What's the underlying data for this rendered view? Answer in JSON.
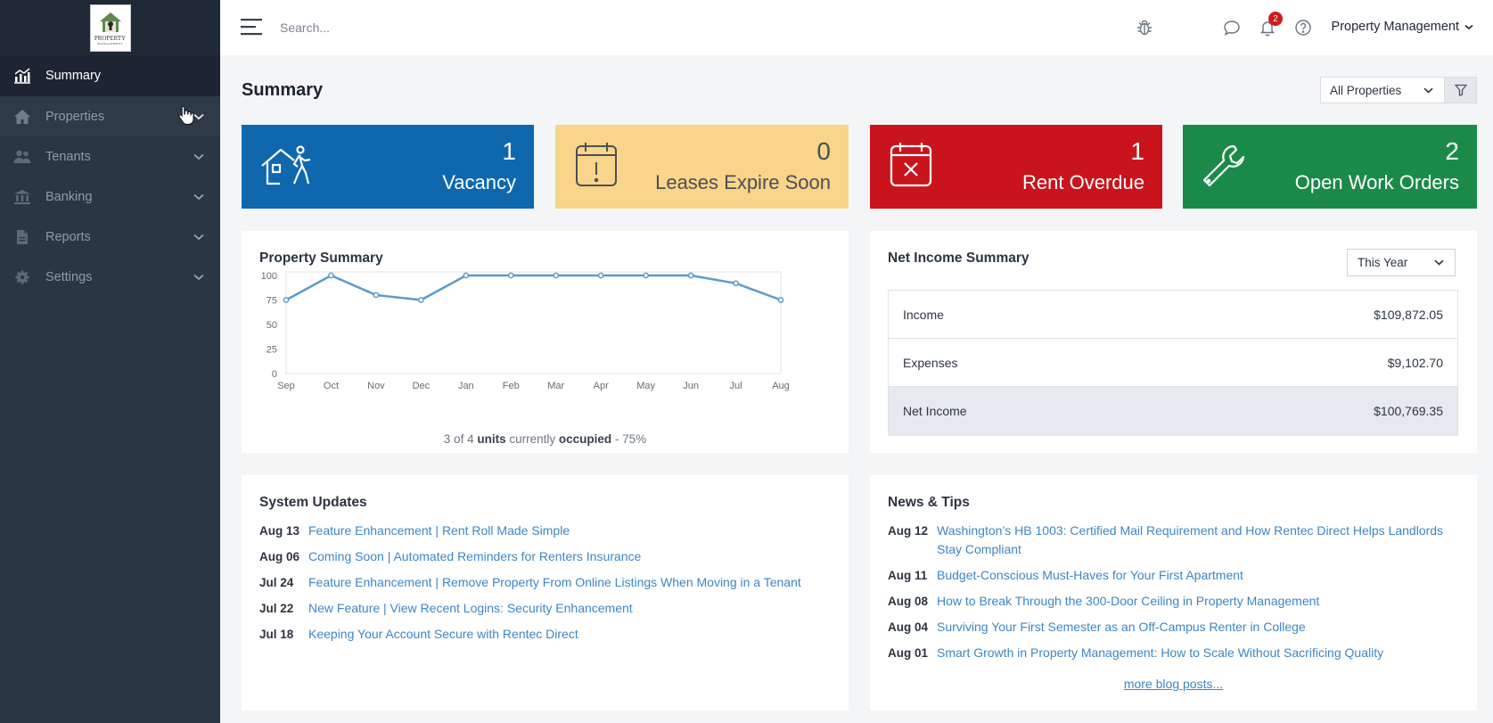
{
  "logo": {
    "text": "PROPERTY",
    "subtext": "MANAGEMENT"
  },
  "sidebar": {
    "items": [
      {
        "label": "Summary",
        "icon": "chart-icon",
        "active": true
      },
      {
        "label": "Properties",
        "icon": "home-icon"
      },
      {
        "label": "Tenants",
        "icon": "users-icon"
      },
      {
        "label": "Banking",
        "icon": "bank-icon"
      },
      {
        "label": "Reports",
        "icon": "document-icon"
      },
      {
        "label": "Settings",
        "icon": "gear-icon"
      }
    ]
  },
  "topbar": {
    "search_placeholder": "Search...",
    "notification_count": "2",
    "account_label": "Property Management"
  },
  "page": {
    "title": "Summary",
    "property_filter": "All Properties"
  },
  "stats": {
    "vacancy": {
      "value": "1",
      "label": "Vacancy"
    },
    "leases": {
      "value": "0",
      "label": "Leases Expire Soon"
    },
    "overdue": {
      "value": "1",
      "label": "Rent Overdue"
    },
    "work_orders": {
      "value": "2",
      "label": "Open Work Orders"
    }
  },
  "property_summary": {
    "title": "Property Summary",
    "footer": {
      "count": "3 of 4",
      "units": "units",
      "currently": "currently",
      "occupied": "occupied",
      "pct": "- 75%"
    }
  },
  "chart_data": {
    "type": "line",
    "title": "Property Summary",
    "categories": [
      "Sep",
      "Oct",
      "Nov",
      "Dec",
      "Jan",
      "Feb",
      "Mar",
      "Apr",
      "May",
      "Jun",
      "Jul",
      "Aug"
    ],
    "values": [
      75,
      100,
      80,
      75,
      100,
      100,
      100,
      100,
      100,
      100,
      92,
      75
    ],
    "yticks": [
      0,
      25,
      50,
      75,
      100
    ],
    "ylim": [
      0,
      100
    ],
    "grid": false,
    "color": "#5b9bcc"
  },
  "net_income": {
    "title": "Net Income Summary",
    "period": "This Year",
    "rows": [
      {
        "label": "Income",
        "value": "$109,872.05"
      },
      {
        "label": "Expenses",
        "value": "$9,102.70"
      },
      {
        "label": "Net Income",
        "value": "$100,769.35"
      }
    ]
  },
  "system_updates": {
    "title": "System Updates",
    "items": [
      {
        "date": "Aug 13",
        "text": "Feature Enhancement | Rent Roll Made Simple"
      },
      {
        "date": "Aug 06",
        "text": "Coming Soon | Automated Reminders for Renters Insurance"
      },
      {
        "date": "Jul 24",
        "text": "Feature Enhancement | Remove Property From Online Listings When Moving in a Tenant"
      },
      {
        "date": "Jul 22",
        "text": "New Feature | View Recent Logins: Security Enhancement"
      },
      {
        "date": "Jul 18",
        "text": "Keeping Your Account Secure with Rentec Direct"
      }
    ]
  },
  "news": {
    "title": "News & Tips",
    "items": [
      {
        "date": "Aug 12",
        "text": "Washington’s HB 1003: Certified Mail Requirement and How Rentec Direct Helps Landlords Stay Compliant"
      },
      {
        "date": "Aug 11",
        "text": "Budget-Conscious Must-Haves for Your First Apartment"
      },
      {
        "date": "Aug 08",
        "text": "How to Break Through the 300-Door Ceiling in Property Management"
      },
      {
        "date": "Aug 04",
        "text": "Surviving Your First Semester as an Off-Campus Renter in College"
      },
      {
        "date": "Aug 01",
        "text": "Smart Growth in Property Management: How to Scale Without Sacrificing Quality"
      }
    ],
    "more_label": "more blog posts..."
  }
}
